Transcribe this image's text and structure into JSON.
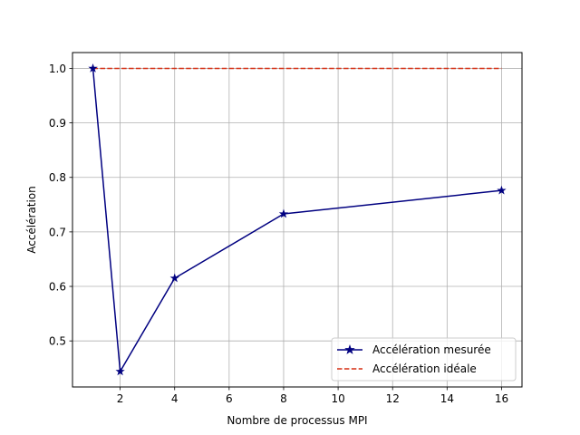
{
  "chart_data": {
    "type": "line",
    "xlabel": "Nombre de processus MPI",
    "ylabel": "Accélération",
    "xlim": [
      0.25,
      16.75
    ],
    "ylim": [
      0.4155,
      1.029
    ],
    "x_ticks": [
      2,
      4,
      6,
      8,
      10,
      12,
      14,
      16
    ],
    "y_ticks": [
      0.5,
      0.6,
      0.7,
      0.8,
      0.9,
      1.0
    ],
    "x_tick_labels": [
      "2",
      "4",
      "6",
      "8",
      "10",
      "12",
      "14",
      "16"
    ],
    "y_tick_labels": [
      "0.5",
      "0.6",
      "0.7",
      "0.8",
      "0.9",
      "1.0"
    ],
    "grid": true,
    "legend_position": "bottom-right",
    "series": [
      {
        "name": "Accélération mesurée",
        "color": "#000080",
        "line_style": "solid",
        "marker": "star",
        "x": [
          1,
          2,
          4,
          8,
          16
        ],
        "y": [
          1.0,
          0.444,
          0.615,
          0.733,
          0.776
        ]
      },
      {
        "name": "Accélération idéale",
        "color": "#d62e12",
        "line_style": "dashed",
        "marker": "none",
        "x": [
          1,
          16
        ],
        "y": [
          1.0,
          1.0
        ]
      }
    ]
  }
}
